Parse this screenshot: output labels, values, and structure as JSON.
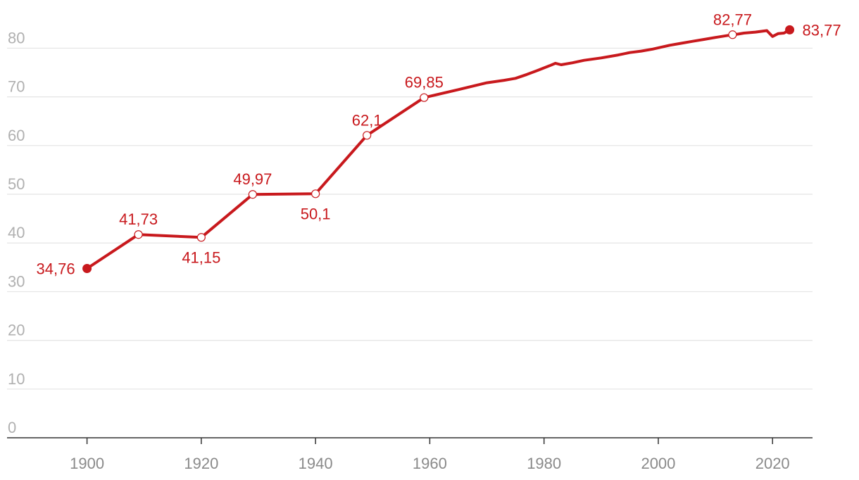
{
  "chart_data": {
    "type": "line",
    "title": "",
    "xlabel": "",
    "ylabel": "",
    "xlim": [
      1886,
      2027
    ],
    "ylim": [
      0,
      87
    ],
    "grid": true,
    "line_color": "#c8191d",
    "y_ticks": [
      "0",
      "10",
      "20",
      "30",
      "40",
      "50",
      "60",
      "70",
      "80"
    ],
    "x_ticks": [
      "1900",
      "1920",
      "1940",
      "1960",
      "1980",
      "2000",
      "2020"
    ],
    "series": [
      {
        "x": [
          1900,
          1909,
          1920,
          1929,
          1940,
          1949,
          1959,
          1965,
          1970,
          1973,
          1975,
          1977,
          1979,
          1981,
          1982,
          1983,
          1985,
          1987,
          1990,
          1993,
          1995,
          1997,
          1999,
          2002,
          2004,
          2006,
          2008,
          2010,
          2013,
          2014,
          2015,
          2017,
          2019,
          2020,
          2021,
          2022,
          2023
        ],
        "y": [
          34.76,
          41.73,
          41.15,
          49.97,
          50.1,
          62.1,
          69.85,
          71.5,
          72.9,
          73.4,
          73.8,
          74.6,
          75.5,
          76.4,
          76.9,
          76.6,
          77.0,
          77.5,
          78.0,
          78.6,
          79.1,
          79.4,
          79.8,
          80.6,
          81.0,
          81.4,
          81.8,
          82.2,
          82.77,
          82.9,
          83.1,
          83.3,
          83.6,
          82.4,
          83.0,
          83.1,
          83.77
        ]
      }
    ],
    "labels": [
      {
        "year": 1900,
        "value": 34.76,
        "text": "34,76",
        "marker": "filled",
        "pos": "left"
      },
      {
        "year": 1909,
        "value": 41.73,
        "text": "41,73",
        "marker": "open",
        "pos": "above"
      },
      {
        "year": 1920,
        "value": 41.15,
        "text": "41,15",
        "marker": "open",
        "pos": "below"
      },
      {
        "year": 1929,
        "value": 49.97,
        "text": "49,97",
        "marker": "open",
        "pos": "above"
      },
      {
        "year": 1940,
        "value": 50.1,
        "text": "50,1",
        "marker": "open",
        "pos": "below"
      },
      {
        "year": 1949,
        "value": 62.1,
        "text": "62,1",
        "marker": "open",
        "pos": "above"
      },
      {
        "year": 1959,
        "value": 69.85,
        "text": "69,85",
        "marker": "open",
        "pos": "above"
      },
      {
        "year": 2013,
        "value": 82.77,
        "text": "82,77",
        "marker": "open",
        "pos": "above"
      },
      {
        "year": 2023,
        "value": 83.77,
        "text": "83,77",
        "marker": "filled",
        "pos": "right"
      }
    ]
  }
}
